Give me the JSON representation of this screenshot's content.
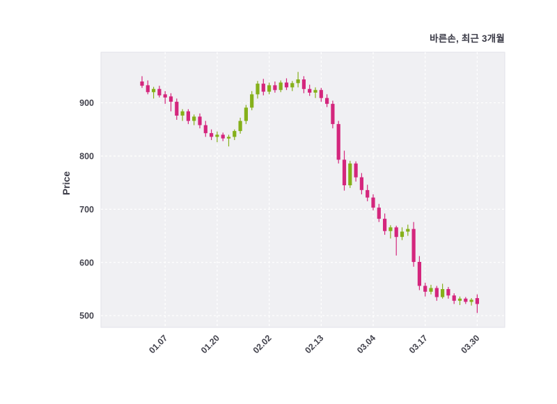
{
  "chart": {
    "title": "바른손, 최근 3개월",
    "ylabel": "Price"
  },
  "chart_data": {
    "type": "candlestick",
    "title": "바른손, 최근 3개월",
    "ylabel": "Price",
    "ylim": [
      478,
      995
    ],
    "yticks": [
      500,
      600,
      700,
      800,
      900
    ],
    "grid": "dashed-white-on-gray",
    "colors": {
      "up": "#85b01a",
      "down": "#d4267d",
      "plot_bg": "#f0f0f3",
      "plot_border": "#e2e2ea",
      "grid": "#ffffff",
      "tick_text": "#44444e"
    },
    "xticks": [
      {
        "label": "01.07",
        "index": 4
      },
      {
        "label": "01.20",
        "index": 13
      },
      {
        "label": "02.02",
        "index": 22
      },
      {
        "label": "02.13",
        "index": 31
      },
      {
        "label": "03.04",
        "index": 40
      },
      {
        "label": "03.17",
        "index": 49
      },
      {
        "label": "03.30",
        "index": 58
      }
    ],
    "candles_format": [
      "open",
      "high",
      "low",
      "close"
    ],
    "candles": [
      [
        940,
        950,
        928,
        932
      ],
      [
        933,
        942,
        916,
        920
      ],
      [
        920,
        930,
        908,
        926
      ],
      [
        926,
        932,
        910,
        914
      ],
      [
        916,
        922,
        898,
        910
      ],
      [
        912,
        918,
        884,
        902
      ],
      [
        902,
        908,
        868,
        876
      ],
      [
        876,
        888,
        866,
        884
      ],
      [
        884,
        888,
        860,
        866
      ],
      [
        866,
        878,
        858,
        874
      ],
      [
        874,
        880,
        852,
        858
      ],
      [
        858,
        866,
        836,
        843
      ],
      [
        843,
        850,
        830,
        836
      ],
      [
        836,
        846,
        826,
        840
      ],
      [
        840,
        844,
        828,
        833
      ],
      [
        833,
        840,
        818,
        836
      ],
      [
        836,
        850,
        830,
        847
      ],
      [
        847,
        872,
        842,
        866
      ],
      [
        866,
        896,
        860,
        891
      ],
      [
        891,
        922,
        886,
        916
      ],
      [
        916,
        941,
        908,
        936
      ],
      [
        936,
        945,
        914,
        921
      ],
      [
        921,
        938,
        916,
        933
      ],
      [
        933,
        940,
        919,
        924
      ],
      [
        924,
        942,
        920,
        938
      ],
      [
        938,
        946,
        924,
        929
      ],
      [
        929,
        941,
        922,
        937
      ],
      [
        937,
        958,
        929,
        944
      ],
      [
        944,
        950,
        918,
        926
      ],
      [
        926,
        934,
        913,
        919
      ],
      [
        919,
        929,
        909,
        924
      ],
      [
        924,
        928,
        902,
        909
      ],
      [
        909,
        916,
        892,
        898
      ],
      [
        898,
        904,
        852,
        860
      ],
      [
        860,
        866,
        786,
        793
      ],
      [
        793,
        810,
        735,
        745
      ],
      [
        745,
        791,
        740,
        786
      ],
      [
        786,
        790,
        752,
        760
      ],
      [
        760,
        768,
        728,
        736
      ],
      [
        736,
        746,
        715,
        722
      ],
      [
        722,
        728,
        698,
        703
      ],
      [
        703,
        710,
        676,
        682
      ],
      [
        682,
        692,
        652,
        659
      ],
      [
        659,
        670,
        645,
        666
      ],
      [
        666,
        669,
        613,
        648
      ],
      [
        648,
        666,
        642,
        658
      ],
      [
        658,
        671,
        650,
        663
      ],
      [
        663,
        676,
        592,
        601
      ],
      [
        601,
        612,
        548,
        556
      ],
      [
        556,
        562,
        536,
        545
      ],
      [
        545,
        558,
        540,
        552
      ],
      [
        552,
        556,
        528,
        535
      ],
      [
        535,
        560,
        532,
        550
      ],
      [
        550,
        554,
        532,
        538
      ],
      [
        538,
        542,
        522,
        528
      ],
      [
        528,
        536,
        520,
        532
      ],
      [
        532,
        535,
        522,
        526
      ],
      [
        526,
        533,
        519,
        530
      ],
      [
        533,
        540,
        505,
        522
      ]
    ]
  }
}
